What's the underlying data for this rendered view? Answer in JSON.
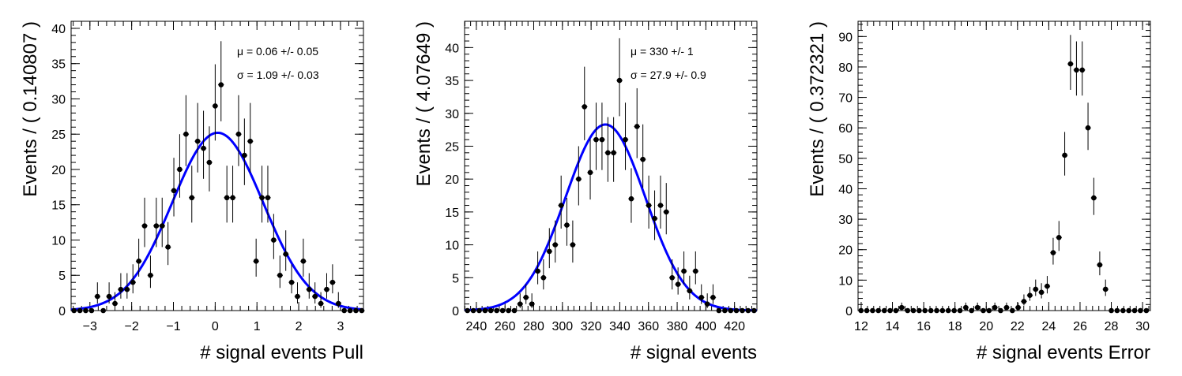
{
  "chart_data": [
    {
      "type": "scatter",
      "xlabel": "# signal events Pull",
      "ylabel": "Events / ( 0.140807 )",
      "xlim": [
        -3.45,
        3.55
      ],
      "ylim": [
        0,
        41
      ],
      "xticks": [
        -3,
        -2,
        -1,
        0,
        1,
        2,
        3
      ],
      "xtick_labels": [
        "−3",
        "−2",
        "−1",
        "0",
        "1",
        "2",
        "3"
      ],
      "yticks": [
        0,
        5,
        10,
        15,
        20,
        25,
        30,
        35,
        40
      ],
      "ytick_labels": [
        "0",
        "5",
        "10",
        "15",
        "20",
        "25",
        "30",
        "35",
        "40"
      ],
      "stats": [
        "μ =  0.06 +/- 0.05",
        "σ =  1.09 +/- 0.03"
      ],
      "fit": {
        "curve": "gaussian",
        "mean": 0.06,
        "sigma": 1.09,
        "amplitude": 25.2,
        "color": "#0000ff"
      },
      "x": [
        -3.38,
        -3.24,
        -3.1,
        -2.96,
        -2.82,
        -2.68,
        -2.54,
        -2.4,
        -2.26,
        -2.11,
        -1.97,
        -1.83,
        -1.69,
        -1.55,
        -1.41,
        -1.27,
        -1.13,
        -0.99,
        -0.85,
        -0.7,
        -0.56,
        -0.42,
        -0.28,
        -0.14,
        0.0,
        0.14,
        0.28,
        0.42,
        0.56,
        0.7,
        0.84,
        0.98,
        1.12,
        1.26,
        1.4,
        1.55,
        1.69,
        1.83,
        1.97,
        2.11,
        2.25,
        2.39,
        2.53,
        2.67,
        2.81,
        2.95,
        3.09,
        3.23,
        3.37,
        3.51
      ],
      "y": [
        0,
        0,
        0,
        0,
        2,
        0,
        2,
        1,
        3,
        3,
        4,
        7,
        12,
        5,
        12,
        12,
        9,
        17,
        20,
        25,
        16,
        24,
        23,
        21,
        29,
        32,
        16,
        16,
        25,
        22,
        24,
        7,
        16,
        16,
        10,
        5,
        8,
        4,
        2,
        7,
        3,
        2,
        1,
        3,
        4,
        1,
        0,
        0,
        0,
        0
      ]
    },
    {
      "type": "scatter",
      "xlabel": "# signal events",
      "ylabel": "Events / ( 4.07649 )",
      "xlim": [
        231.8,
        435.6
      ],
      "ylim": [
        0,
        44
      ],
      "xticks": [
        240,
        260,
        280,
        300,
        320,
        340,
        360,
        380,
        400,
        420
      ],
      "xtick_labels": [
        "240",
        "260",
        "280",
        "300",
        "320",
        "340",
        "360",
        "380",
        "400",
        "420"
      ],
      "yticks": [
        0,
        5,
        10,
        15,
        20,
        25,
        30,
        35,
        40
      ],
      "ytick_labels": [
        "0",
        "5",
        "10",
        "15",
        "20",
        "25",
        "30",
        "35",
        "40"
      ],
      "stats": [
        "μ =  330 +/- 1",
        "σ =  27.9 +/- 0.9"
      ],
      "fit": {
        "curve": "gaussian",
        "mean": 330,
        "sigma": 27.9,
        "amplitude": 28.3,
        "color": "#0000ff"
      },
      "x": [
        233.8,
        237.9,
        242.0,
        246.1,
        250.1,
        254.2,
        258.3,
        262.4,
        266.5,
        270.5,
        274.6,
        278.7,
        282.8,
        286.8,
        290.9,
        295.0,
        299.1,
        303.1,
        307.2,
        311.3,
        315.4,
        319.4,
        323.5,
        327.6,
        331.7,
        335.7,
        339.8,
        343.9,
        348.0,
        352.0,
        356.1,
        360.2,
        364.3,
        368.4,
        372.4,
        376.5,
        380.6,
        384.7,
        388.7,
        392.8,
        396.9,
        401.0,
        405.0,
        409.1,
        413.2,
        417.3,
        421.3,
        425.4,
        429.5,
        433.6
      ],
      "y": [
        0,
        0,
        0,
        0,
        0,
        0,
        0,
        0,
        0,
        1,
        2,
        1,
        6,
        5,
        9,
        10,
        16,
        13,
        10,
        20,
        31,
        21,
        26,
        26,
        24,
        24,
        35,
        26,
        17,
        28,
        23,
        16,
        14,
        16,
        15,
        5,
        4,
        6,
        3,
        6,
        2,
        1,
        2,
        0,
        0,
        0,
        0,
        0,
        0,
        0
      ]
    },
    {
      "type": "scatter",
      "xlabel": "# signal events Error",
      "ylabel": "Events / ( 0.372321 )",
      "xlim": [
        11.8,
        30.5
      ],
      "ylim": [
        0,
        95
      ],
      "xticks": [
        12,
        14,
        16,
        18,
        20,
        22,
        24,
        26,
        28,
        30
      ],
      "xtick_labels": [
        "12",
        "14",
        "16",
        "18",
        "20",
        "22",
        "24",
        "26",
        "28",
        "30"
      ],
      "yticks": [
        0,
        10,
        20,
        30,
        40,
        50,
        60,
        70,
        80,
        90
      ],
      "ytick_labels": [
        "0",
        "10",
        "20",
        "30",
        "40",
        "50",
        "60",
        "70",
        "80",
        "90"
      ],
      "stats": [],
      "x": [
        11.99,
        12.36,
        12.73,
        13.1,
        13.48,
        13.85,
        14.22,
        14.59,
        14.97,
        15.34,
        15.71,
        16.08,
        16.46,
        16.83,
        17.2,
        17.57,
        17.95,
        18.32,
        18.69,
        19.06,
        19.44,
        19.81,
        20.18,
        20.55,
        20.92,
        21.3,
        21.67,
        22.04,
        22.41,
        22.79,
        23.16,
        23.53,
        23.9,
        24.28,
        24.65,
        25.02,
        25.39,
        25.77,
        26.14,
        26.51,
        26.88,
        27.26,
        27.63,
        28.0,
        28.37,
        28.75,
        29.12,
        29.49,
        29.86,
        30.24
      ],
      "y": [
        0,
        0,
        0,
        0,
        0,
        0,
        0,
        1,
        0,
        0,
        0,
        0,
        0,
        0,
        0,
        0,
        0,
        0,
        1,
        0,
        1,
        0,
        0,
        1,
        0,
        1,
        0,
        1,
        3,
        5,
        7,
        6,
        8,
        19,
        24,
        51,
        81,
        79,
        79,
        60,
        37,
        15,
        7,
        0,
        0,
        0,
        0,
        0,
        0,
        0
      ]
    }
  ]
}
